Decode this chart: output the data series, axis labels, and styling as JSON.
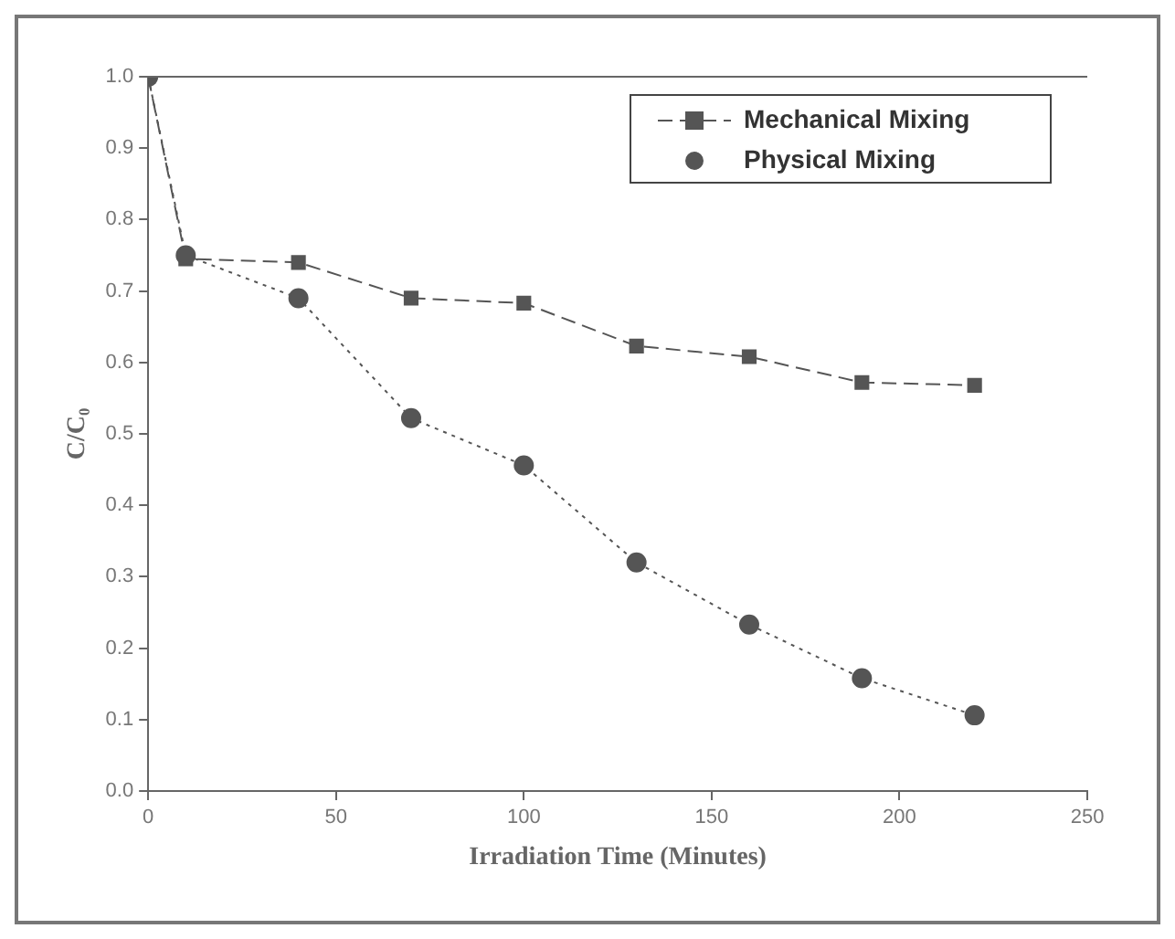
{
  "chart_data": {
    "type": "line",
    "xlabel": "Irradiation Time (Minutes)",
    "ylabel": "C/C₀",
    "x": [
      0,
      10,
      40,
      70,
      100,
      130,
      160,
      190,
      220
    ],
    "series": [
      {
        "name": "Mechanical Mixing",
        "color": "#555555",
        "marker": "square",
        "line_style": "dashed",
        "values": [
          1.0,
          0.745,
          0.74,
          0.69,
          0.683,
          0.623,
          0.608,
          0.572,
          0.568
        ]
      },
      {
        "name": "Physical Mixing",
        "color": "#555555",
        "marker": "circle",
        "line_style": "dotted",
        "values": [
          1.0,
          0.75,
          0.69,
          0.522,
          0.456,
          0.32,
          0.233,
          0.158,
          0.106
        ]
      }
    ],
    "xlim": [
      0,
      250
    ],
    "xticks": [
      0,
      50,
      100,
      150,
      200,
      250
    ],
    "ylim": [
      0,
      1.0
    ],
    "yticks": [
      {
        "value": 0,
        "label": "0.0"
      },
      0.1,
      0.2,
      0.3,
      0.4,
      0.5,
      0.6,
      0.7,
      0.8,
      0.9,
      {
        "value": 1,
        "label": "1.0"
      }
    ],
    "legend": "top right",
    "grid": false
  }
}
